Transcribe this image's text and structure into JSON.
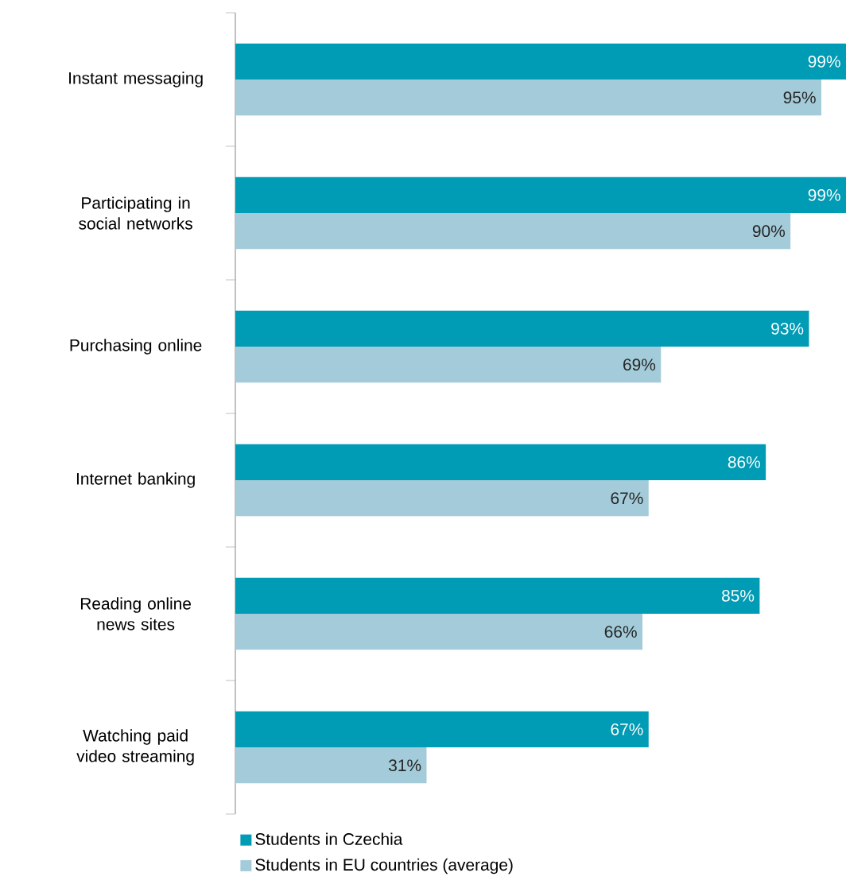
{
  "chart_data": {
    "type": "bar",
    "orientation": "horizontal",
    "categories": [
      "Instant messaging",
      "Participating in social networks",
      "Purchasing online",
      "Internet banking",
      "Reading online news sites",
      "Watching paid video streaming"
    ],
    "series": [
      {
        "name": "Students in Czechia",
        "color": "#009bb4",
        "values": [
          99,
          99,
          93,
          86,
          85,
          67
        ],
        "value_labels": [
          "99%",
          "99%",
          "93%",
          "86%",
          "85%",
          "67%"
        ]
      },
      {
        "name": "Students in EU countries (average)",
        "color": "#a3cbd9",
        "values": [
          95,
          90,
          69,
          67,
          66,
          31
        ],
        "value_labels": [
          "95%",
          "90%",
          "69%",
          "67%",
          "66%",
          "31%"
        ]
      }
    ],
    "legend": "bottom",
    "tick_labels": "y"
  }
}
